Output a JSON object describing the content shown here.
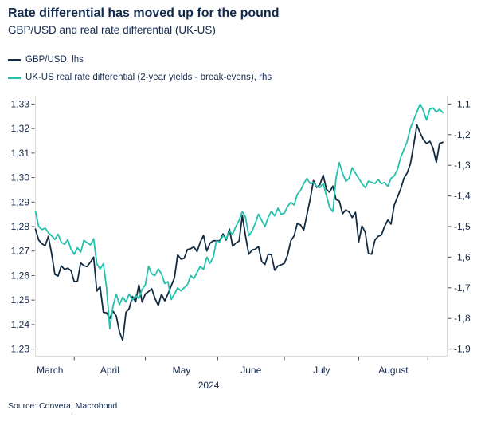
{
  "header": {
    "title": "Rate differential has moved up for the pound",
    "subtitle": "GBP/USD and real rate differential (UK-US)"
  },
  "legend": [
    {
      "label": "GBP/USD, lhs",
      "color": "#132b42"
    },
    {
      "label": "UK-US real rate differential (2-year yields - break-evens), rhs",
      "color": "#23c1ab"
    }
  ],
  "source": "Source: Convera, Macrobond",
  "colors": {
    "navy": "#132b42",
    "teal": "#23c1ab",
    "axis_line": "#d9d9d9",
    "tick_mark": "#4a4a4a",
    "text": "#14294e"
  },
  "chart_data": {
    "type": "line",
    "title": "Rate differential has moved up for the pound",
    "subtitle": "GBP/USD and real rate differential (UK-US)",
    "grid": false,
    "legend_position": "top-left",
    "x_axis": {
      "year_label": "2024",
      "year_center_idx": 53.6,
      "months": [
        "March",
        "April",
        "May",
        "June",
        "July",
        "August"
      ],
      "month_center_idx": [
        4.5,
        23,
        45.2,
        66.7,
        88.5,
        110.7
      ],
      "month_boundary_idx": [
        12,
        34,
        56.4,
        77,
        100,
        121.4
      ],
      "n_points": 127,
      "range_note": "business days, 14 Mar 2024 - 6 Sep 2024"
    },
    "left_axis": {
      "side": "left",
      "min": 1.2271,
      "max": 1.3334,
      "ticks": [
        {
          "v": 1.33,
          "label": "1,33"
        },
        {
          "v": 1.32,
          "label": "1,32"
        },
        {
          "v": 1.31,
          "label": "1,31"
        },
        {
          "v": 1.3,
          "label": "1,30"
        },
        {
          "v": 1.29,
          "label": "1,29"
        },
        {
          "v": 1.28,
          "label": "1,28"
        },
        {
          "v": 1.27,
          "label": "1,27"
        },
        {
          "v": 1.26,
          "label": "1,26"
        },
        {
          "v": 1.25,
          "label": "1,25"
        },
        {
          "v": 1.24,
          "label": "1,24"
        },
        {
          "v": 1.23,
          "label": "1,23"
        }
      ]
    },
    "right_axis": {
      "side": "right",
      "min": -1.9232,
      "max": -1.0729,
      "ticks": [
        {
          "v": -1.1,
          "label": "-1,1"
        },
        {
          "v": -1.2,
          "label": "-1,2"
        },
        {
          "v": -1.3,
          "label": "-1,3"
        },
        {
          "v": -1.4,
          "label": "-1,4"
        },
        {
          "v": -1.5,
          "label": "-1,5"
        },
        {
          "v": -1.6,
          "label": "-1,6"
        },
        {
          "v": -1.7,
          "label": "-1,7"
        },
        {
          "v": -1.8,
          "label": "-1,8"
        },
        {
          "v": -1.9,
          "label": "-1,9"
        }
      ]
    },
    "series": [
      {
        "name": "GBP/USD, lhs",
        "axis": "left",
        "color": "#132b42",
        "values": [
          1.279,
          1.2745,
          1.273,
          1.2722,
          1.276,
          1.269,
          1.2605,
          1.2598,
          1.264,
          1.2625,
          1.263,
          1.262,
          1.2575,
          1.2577,
          1.2652,
          1.264,
          1.2637,
          1.2655,
          1.2675,
          1.2537,
          1.2555,
          1.245,
          1.2448,
          1.2425,
          1.2455,
          1.2435,
          1.237,
          1.2335,
          1.245,
          1.2465,
          1.2515,
          1.2493,
          1.2562,
          1.2492,
          1.2525,
          1.2535,
          1.2546,
          1.2506,
          1.2478,
          1.2524,
          1.2497,
          1.2525,
          1.2558,
          1.2591,
          1.2685,
          1.2667,
          1.267,
          1.2706,
          1.271,
          1.2717,
          1.2698,
          1.2737,
          1.2764,
          1.27,
          1.2732,
          1.2742,
          1.2742,
          1.2742,
          1.277,
          1.2745,
          1.279,
          1.272,
          1.2733,
          1.2741,
          1.2845,
          1.276,
          1.2687,
          1.2704,
          1.2708,
          1.2718,
          1.2657,
          1.2645,
          1.2687,
          1.2685,
          1.2622,
          1.2639,
          1.2644,
          1.265,
          1.2683,
          1.2742,
          1.2762,
          1.2812,
          1.2807,
          1.2785,
          1.285,
          1.2913,
          1.2988,
          1.296,
          1.2971,
          1.301,
          1.2952,
          1.294,
          1.2965,
          1.291,
          1.2904,
          1.2852,
          1.2868,
          1.286,
          1.2837,
          1.2858,
          1.2738,
          1.2803,
          1.2777,
          1.269,
          1.2687,
          1.2745,
          1.276,
          1.2766,
          1.28,
          1.2827,
          1.281,
          1.2888,
          1.2921,
          1.2954,
          1.2998,
          1.3019,
          1.3057,
          1.3133,
          1.3215,
          1.3182,
          1.3155,
          1.3139,
          1.3148,
          1.312,
          1.3062,
          1.3139,
          1.3144
        ]
      },
      {
        "name": "UK-US real rate differential (2-year yields - break-evens), rhs",
        "axis": "right",
        "color": "#23c1ab",
        "values": [
          -1.45,
          -1.5,
          -1.51,
          -1.505,
          -1.52,
          -1.53,
          -1.542,
          -1.525,
          -1.551,
          -1.558,
          -1.543,
          -1.574,
          -1.59,
          -1.569,
          -1.584,
          -1.545,
          -1.553,
          -1.56,
          -1.54,
          -1.621,
          -1.639,
          -1.621,
          -1.7,
          -1.834,
          -1.76,
          -1.72,
          -1.755,
          -1.73,
          -1.746,
          -1.72,
          -1.74,
          -1.725,
          -1.735,
          -1.705,
          -1.69,
          -1.63,
          -1.655,
          -1.66,
          -1.638,
          -1.655,
          -1.686,
          -1.68,
          -1.738,
          -1.72,
          -1.7,
          -1.71,
          -1.7,
          -1.69,
          -1.66,
          -1.67,
          -1.65,
          -1.63,
          -1.64,
          -1.6,
          -1.62,
          -1.6,
          -1.547,
          -1.55,
          -1.53,
          -1.54,
          -1.515,
          -1.525,
          -1.5,
          -1.48,
          -1.451,
          -1.47,
          -1.53,
          -1.515,
          -1.49,
          -1.46,
          -1.48,
          -1.5,
          -1.47,
          -1.45,
          -1.465,
          -1.44,
          -1.46,
          -1.456,
          -1.434,
          -1.421,
          -1.43,
          -1.395,
          -1.382,
          -1.36,
          -1.343,
          -1.36,
          -1.356,
          -1.369,
          -1.373,
          -1.36,
          -1.399,
          -1.438,
          -1.451,
          -1.34,
          -1.291,
          -1.326,
          -1.352,
          -1.343,
          -1.308,
          -1.326,
          -1.343,
          -1.36,
          -1.373,
          -1.352,
          -1.356,
          -1.36,
          -1.347,
          -1.36,
          -1.356,
          -1.369,
          -1.343,
          -1.334,
          -1.313,
          -1.274,
          -1.248,
          -1.222,
          -1.178,
          -1.152,
          -1.126,
          -1.1,
          -1.122,
          -1.152,
          -1.117,
          -1.113,
          -1.126,
          -1.117,
          -1.128
        ]
      }
    ]
  }
}
